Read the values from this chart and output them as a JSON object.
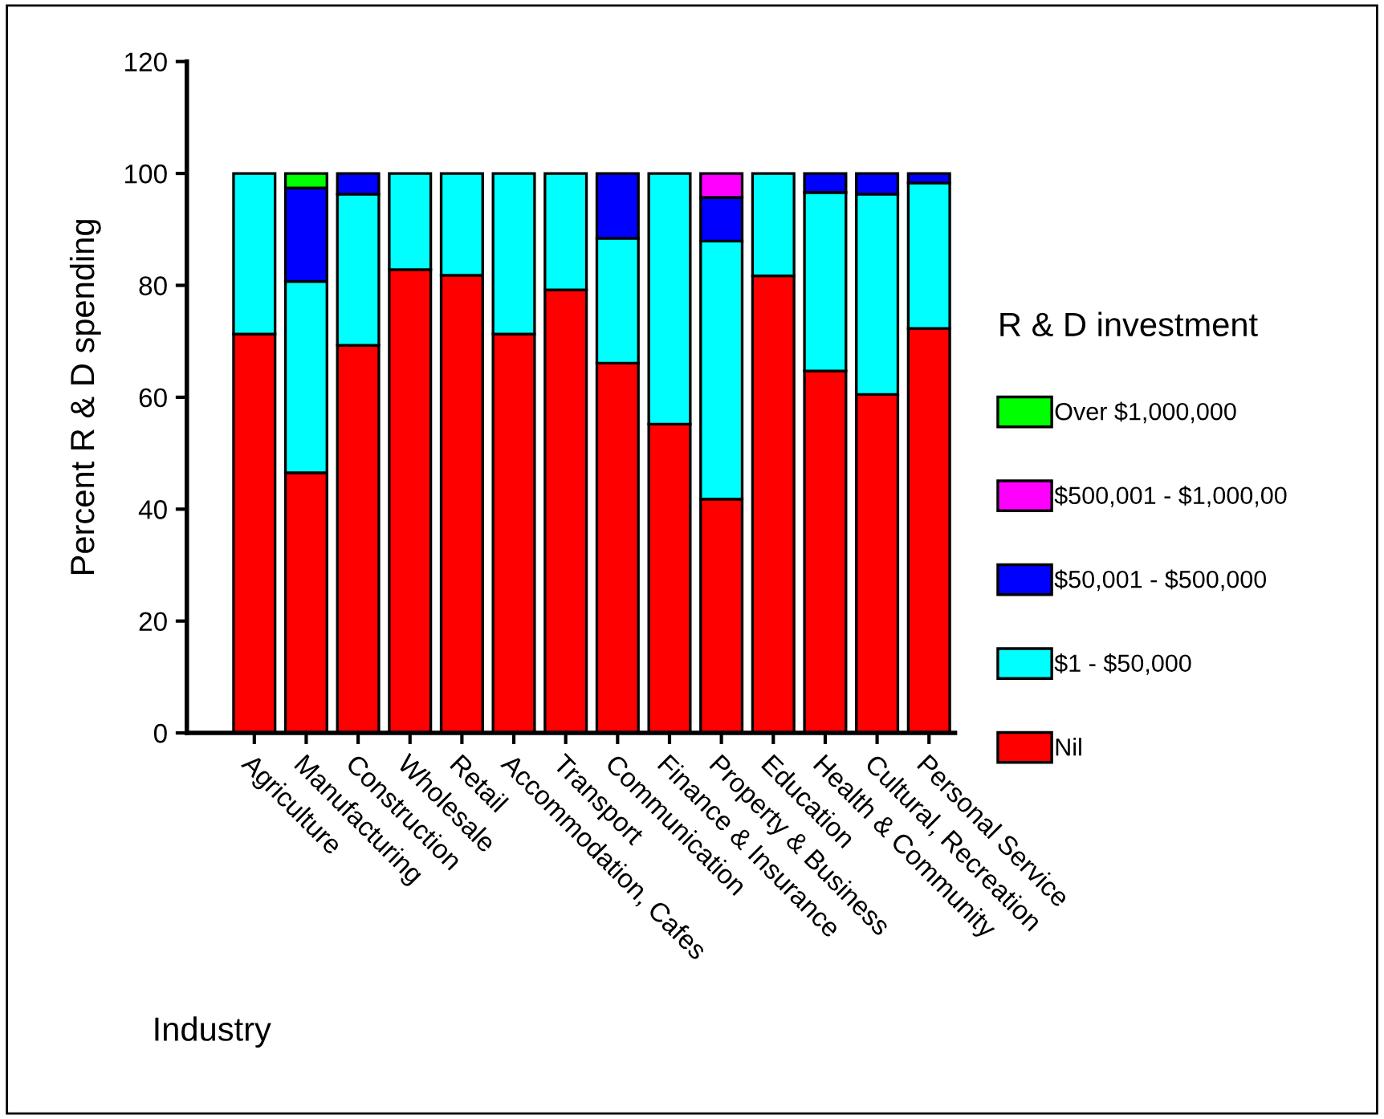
{
  "chart_data": {
    "type": "bar",
    "stacked": true,
    "ylabel": "Percent R & D spending",
    "xlabel": "Industry",
    "legend_title": "R & D investment",
    "legend": "right",
    "grid": false,
    "categories": [
      "Agriculture",
      "Manufacturing",
      "Construction",
      "Wholesale",
      "Retail",
      "Accommodation, Cafes",
      "Transport",
      "Communication",
      "Finance & Insurance",
      "Property & Business",
      "Education",
      "Health & Community",
      "Cultural, Recreation",
      "Personal Service"
    ],
    "ylim": [
      0,
      120
    ],
    "yticks": [
      0,
      20,
      40,
      60,
      80,
      100,
      120
    ],
    "series": [
      {
        "name": "Nil",
        "color": "#ff0000",
        "values": [
          71.3,
          46.5,
          69.3,
          82.8,
          81.8,
          71.3,
          79.2,
          66.1,
          55.2,
          41.8,
          81.7,
          64.7,
          60.5,
          72.3
        ]
      },
      {
        "name": "$1 - $50,000",
        "color": "#00ffff",
        "values": [
          28.7,
          34.2,
          27.0,
          17.2,
          18.2,
          28.7,
          20.8,
          22.3,
          44.8,
          46.1,
          18.3,
          31.9,
          35.8,
          26.0
        ]
      },
      {
        "name": "$50,001 - $500,000",
        "color": "#0000ff",
        "values": [
          null,
          16.7,
          3.7,
          null,
          null,
          null,
          null,
          11.6,
          null,
          7.8,
          null,
          3.4,
          3.7,
          1.7
        ]
      },
      {
        "name": "$500,001 - $1,000,00",
        "color": "#ff00ff",
        "values": [
          null,
          null,
          null,
          null,
          null,
          null,
          null,
          null,
          null,
          4.3,
          null,
          null,
          null,
          null
        ]
      },
      {
        "name": "Over $1,000,000",
        "color": "#00ff00",
        "values": [
          null,
          2.6,
          null,
          null,
          null,
          null,
          null,
          null,
          null,
          null,
          null,
          null,
          null,
          null
        ]
      }
    ]
  }
}
